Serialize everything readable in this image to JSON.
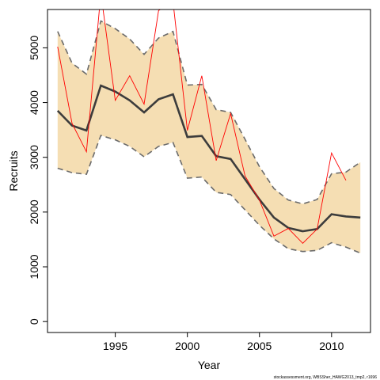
{
  "chart_data": {
    "type": "line",
    "xlabel": "Year",
    "ylabel": "Recruits",
    "xlim": [
      1990.3,
      1992.7
    ],
    "ylim": [
      -200,
      5700
    ],
    "x_ticks": [
      1995,
      2000,
      2005,
      2010
    ],
    "y_ticks": [
      0,
      1000,
      2000,
      3000,
      4000,
      5000
    ],
    "footnote": "stockassessment.org, WBSSher_HAWG2013_tmp2, r1696",
    "series": [
      {
        "role": "estimate",
        "x": [
          1991,
          1992,
          1993,
          1994,
          1995,
          1996,
          1997,
          1998,
          1999,
          2000,
          2001,
          2002,
          2003,
          2004,
          2005,
          2006,
          2007,
          2008,
          2009,
          2010,
          2011,
          2012
        ],
        "values": [
          3850,
          3580,
          3490,
          4310,
          4200,
          4040,
          3820,
          4060,
          4150,
          3370,
          3390,
          3020,
          2970,
          2600,
          2230,
          1900,
          1710,
          1650,
          1690,
          1960,
          1920,
          1900
        ]
      },
      {
        "role": "lower-confidence-bound",
        "x": [
          1991,
          1992,
          1993,
          1994,
          1995,
          1996,
          1997,
          1998,
          1999,
          2000,
          2001,
          2002,
          2003,
          2004,
          2005,
          2006,
          2007,
          2008,
          2009,
          2010,
          2011,
          2012
        ],
        "values": [
          2800,
          2720,
          2690,
          3400,
          3320,
          3200,
          3010,
          3200,
          3270,
          2620,
          2640,
          2360,
          2320,
          2040,
          1760,
          1510,
          1330,
          1280,
          1300,
          1440,
          1360,
          1250
        ]
      },
      {
        "role": "upper-confidence-bound",
        "x": [
          1991,
          1992,
          1993,
          1994,
          1995,
          1996,
          1997,
          1998,
          1999,
          2000,
          2001,
          2002,
          2003,
          2004,
          2005,
          2006,
          2007,
          2008,
          2009,
          2010,
          2011,
          2012
        ],
        "values": [
          5300,
          4720,
          4520,
          5490,
          5350,
          5160,
          4880,
          5180,
          5300,
          4320,
          4330,
          3870,
          3820,
          3330,
          2830,
          2430,
          2220,
          2150,
          2230,
          2700,
          2730,
          2910
        ]
      },
      {
        "role": "observed",
        "x": [
          1991,
          1992,
          1993,
          1994,
          1995,
          1996,
          1997,
          1998,
          1999,
          2000,
          2001,
          2002,
          2003,
          2004,
          2005,
          2006,
          2007,
          2008,
          2009,
          2010,
          2011
        ],
        "values": [
          5020,
          3620,
          3100,
          6000,
          4040,
          4490,
          3970,
          5680,
          5850,
          3490,
          4490,
          2940,
          3800,
          2660,
          2220,
          1560,
          1700,
          1430,
          1690,
          3080,
          2580
        ]
      }
    ],
    "colors": {
      "band_fill": "#f5deb3",
      "band_border": "#6b6b6b",
      "estimate": "#3c3c3c",
      "observed": "#ff0000",
      "axis": "#000000"
    },
    "grid": false,
    "legend": "none"
  }
}
